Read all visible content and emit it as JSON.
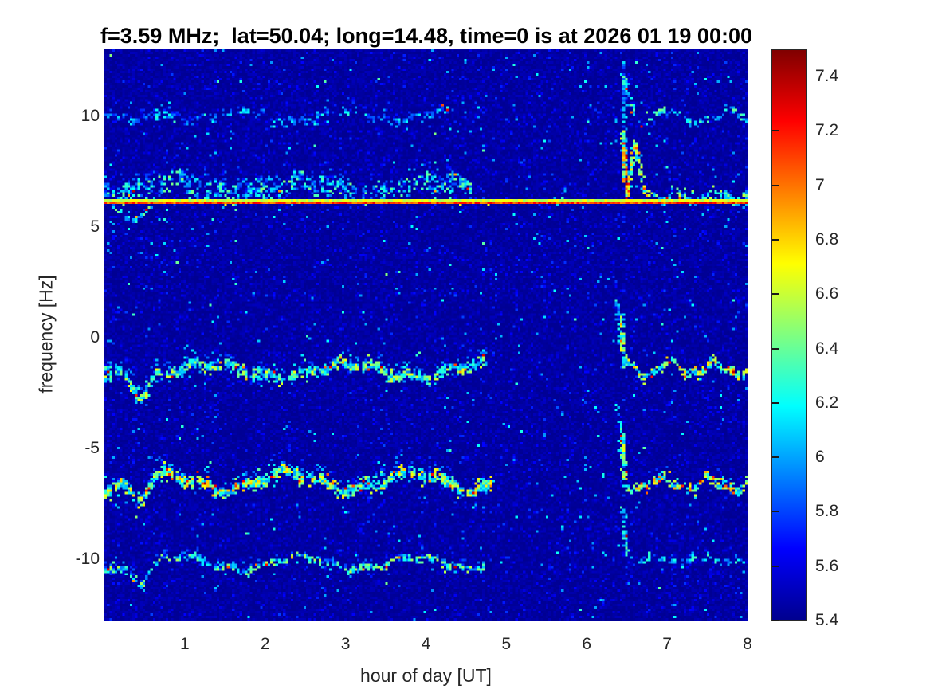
{
  "chart_data": {
    "type": "heatmap",
    "subtype": "doppler-spectrogram",
    "title": "f=3.59 MHz;  lat=50.04; long=14.48, time=0 is at 2026 01 19 00:00",
    "xlabel": "hour of day [UT]",
    "ylabel": "frequency [Hz]",
    "x_ticks": [
      1,
      2,
      3,
      4,
      5,
      6,
      7,
      8
    ],
    "x_tick_labels": [
      "1",
      "2",
      "3",
      "4",
      "5",
      "6",
      "7",
      "8"
    ],
    "y_ticks": [
      10,
      5,
      0,
      -5,
      -10
    ],
    "y_tick_labels": [
      "10",
      "5",
      "0",
      "-5",
      "-10"
    ],
    "xlim": [
      0,
      8
    ],
    "ylim": [
      -12.75,
      13.0
    ],
    "grid": false,
    "colormap": "jet",
    "caxis": [
      5.4,
      7.5
    ],
    "colorbar_ticks": [
      7.4,
      7.2,
      7.0,
      6.8,
      6.6,
      6.4,
      6.2,
      6.0,
      5.8,
      5.6,
      5.4
    ],
    "colorbar_tick_labels": [
      "7.4",
      "7.2",
      "7",
      "6.8",
      "6.6",
      "6.4",
      "6.2",
      "6",
      "5.8",
      "5.6",
      "5.4"
    ],
    "bins": {
      "time": 252,
      "freq": 240
    },
    "noise": {
      "base": 5.44,
      "jitter": 0.09,
      "speckle_prob": 0.1,
      "speckle_add": 0.3,
      "bright_speck_prob": 0.01,
      "bright_speck_lo": 5.95,
      "bright_speck_hi": 6.5
    },
    "carrier_lines": [
      {
        "name": "carrier-yellow-row",
        "hz": 6.2,
        "x0": 0,
        "x1": 8,
        "v": [
          6.5,
          6.75
        ]
      },
      {
        "name": "carrier-red-row",
        "hz": 6.08,
        "x0": 0,
        "x1": 8,
        "v": [
          6.9,
          7.3
        ]
      }
    ],
    "traces": [
      {
        "name": "echo-plus10-left",
        "hz": 10.05,
        "x0": 0.0,
        "x1": 4.35,
        "a1": 0.22,
        "wl1": 1.25,
        "p1": 0.2,
        "a2": 0.1,
        "wl2": 0.38,
        "p2": 0.0,
        "dip": [
          0.42,
          0.55,
          0.13
        ],
        "th": 0.1,
        "dens": 0.5,
        "v": [
          5.75,
          6.3
        ],
        "hot": 0.004,
        "cloud": {
          "spread": 0.45,
          "dens": 0.07,
          "v": [
            5.7,
            6.0
          ]
        }
      },
      {
        "name": "echo-plus10-right",
        "hz": 10.0,
        "x0": 6.55,
        "x1": 8.0,
        "a1": 0.28,
        "wl1": 0.75,
        "p1": 0.1,
        "a2": 0.12,
        "wl2": 0.3,
        "p2": 0.2,
        "th": 0.1,
        "dens": 0.65,
        "v": [
          5.85,
          6.45
        ],
        "hot": 0.005
      },
      {
        "name": "diffuse-cloud-above-carrier",
        "hz": 6.8,
        "x0": 0.0,
        "x1": 4.55,
        "a1": 0.25,
        "wl1": 1.6,
        "p1": 0.5,
        "a2": 0.12,
        "wl2": 0.5,
        "p2": 0.3,
        "th": 0.4,
        "dens": 0.4,
        "v": [
          5.8,
          6.5
        ],
        "hot": 0.012,
        "cloud": {
          "spread": 0.75,
          "dens": 0.22,
          "v": [
            5.7,
            6.25
          ]
        }
      },
      {
        "name": "carrier-right-wavy",
        "hz": 6.42,
        "x0": 6.85,
        "x1": 8.0,
        "a1": 0.22,
        "wl1": 0.5,
        "p1": 0.0,
        "a2": 0.1,
        "wl2": 0.22,
        "p2": 0.0,
        "th": 0.12,
        "dens": 0.8,
        "v": [
          5.9,
          6.6
        ],
        "hot": 0.03
      },
      {
        "name": "echo-minus1.5",
        "hz": -1.45,
        "x0": 0.0,
        "x1": 4.75,
        "a1": 0.3,
        "wl1": 1.7,
        "p1": 0.9,
        "a2": 0.15,
        "wl2": 0.45,
        "p2": 0.1,
        "dip": [
          0.45,
          0.75,
          0.14
        ],
        "th": 0.16,
        "dens": 0.85,
        "v": [
          5.95,
          6.7
        ],
        "hot": 0.035,
        "cloud": {
          "spread": 0.55,
          "dens": 0.22,
          "v": [
            5.8,
            6.35
          ]
        }
      },
      {
        "name": "echo-minus1.5-right",
        "hz": -1.35,
        "x0": 6.45,
        "x1": 8.0,
        "a1": 0.28,
        "wl1": 0.55,
        "p1": 0.3,
        "a2": 0.12,
        "wl2": 0.25,
        "p2": 0.0,
        "th": 0.13,
        "dens": 0.85,
        "v": [
          6.0,
          6.9
        ],
        "hot": 0.09
      },
      {
        "name": "echo-minus6.5",
        "hz": -6.45,
        "x0": 0.0,
        "x1": 4.8,
        "a1": 0.38,
        "wl1": 1.55,
        "p1": 0.35,
        "a2": 0.16,
        "wl2": 0.5,
        "p2": 0.6,
        "dip": [
          0.45,
          0.85,
          0.14
        ],
        "th": 0.18,
        "dens": 0.9,
        "v": [
          6.0,
          6.85
        ],
        "hot": 0.07,
        "cloud": {
          "spread": 0.6,
          "dens": 0.25,
          "v": [
            5.8,
            6.4
          ]
        }
      },
      {
        "name": "echo-minus6.5-right",
        "hz": -6.55,
        "x0": 6.45,
        "x1": 8.0,
        "a1": 0.25,
        "wl1": 0.6,
        "p1": 0.8,
        "a2": 0.12,
        "wl2": 0.27,
        "p2": 0.4,
        "th": 0.14,
        "dens": 0.85,
        "v": [
          6.0,
          6.95
        ],
        "hot": 0.12
      },
      {
        "name": "echo-minus10",
        "hz": -10.1,
        "x0": 0.0,
        "x1": 4.7,
        "a1": 0.28,
        "wl1": 1.45,
        "p1": 0.6,
        "a2": 0.1,
        "wl2": 0.42,
        "p2": 0.2,
        "dip": [
          0.45,
          0.8,
          0.13
        ],
        "th": 0.1,
        "dens": 0.8,
        "v": [
          5.9,
          6.6
        ],
        "hot": 0.025,
        "cloud": {
          "spread": 0.4,
          "dens": 0.12,
          "v": [
            5.75,
            6.2
          ]
        }
      },
      {
        "name": "echo-minus10-right",
        "hz": -9.95,
        "x0": 6.5,
        "x1": 8.0,
        "a1": 0.18,
        "wl1": 0.6,
        "p1": 0.1,
        "a2": 0.08,
        "wl2": 0.25,
        "p2": 0.0,
        "th": 0.1,
        "dens": 0.55,
        "v": [
          5.8,
          6.35
        ],
        "hot": 0.01
      }
    ],
    "features": [
      {
        "name": "sunrise-streak-top",
        "pts": [
          [
            6.44,
            12.7
          ],
          [
            6.47,
            7.3
          ]
        ],
        "dens": 0.3,
        "v": [
          5.75,
          6.2
        ],
        "hot": 0.01
      },
      {
        "name": "carrier-spike-up",
        "pts": [
          [
            6.43,
            9.3
          ],
          [
            6.49,
            6.4
          ]
        ],
        "dens": 0.85,
        "v": [
          6.0,
          7.0
        ],
        "hot": 0.15
      },
      {
        "name": "carrier-spike-chevron",
        "pts": [
          [
            6.49,
            6.4
          ],
          [
            6.58,
            8.9
          ],
          [
            6.7,
            6.7
          ],
          [
            6.85,
            6.45
          ]
        ],
        "dens": 0.7,
        "v": [
          5.95,
          6.8
        ],
        "hot": 0.08
      },
      {
        "name": "descend-minus1.5-a",
        "pts": [
          [
            6.36,
            1.9
          ],
          [
            6.41,
            -0.6
          ]
        ],
        "dens": 0.35,
        "v": [
          5.8,
          6.3
        ],
        "hot": 0.02
      },
      {
        "name": "descend-minus1.5-b",
        "pts": [
          [
            6.41,
            1.2
          ],
          [
            6.46,
            -1.35
          ]
        ],
        "dens": 0.7,
        "v": [
          5.95,
          6.7
        ],
        "hot": 0.1
      },
      {
        "name": "descend-minus6.5-a",
        "pts": [
          [
            6.37,
            -3.0
          ],
          [
            6.42,
            -5.3
          ]
        ],
        "dens": 0.35,
        "v": [
          5.8,
          6.3
        ],
        "hot": 0.02
      },
      {
        "name": "descend-minus6.5-b",
        "pts": [
          [
            6.42,
            -4.2
          ],
          [
            6.46,
            -6.4
          ]
        ],
        "dens": 0.7,
        "v": [
          5.95,
          6.7
        ],
        "hot": 0.1
      },
      {
        "name": "descend-minus10",
        "pts": [
          [
            6.43,
            -7.5
          ],
          [
            6.49,
            -9.8
          ]
        ],
        "dens": 0.45,
        "v": [
          5.85,
          6.4
        ],
        "hot": 0.02
      },
      {
        "name": "descend-plus10-right",
        "pts": [
          [
            6.45,
            11.9
          ],
          [
            6.57,
            10.2
          ]
        ],
        "dens": 0.5,
        "v": [
          5.85,
          6.4
        ],
        "hot": 0.02
      },
      {
        "name": "hook-below-carrier-start",
        "pts": [
          [
            0.08,
            6.0
          ],
          [
            0.3,
            5.35
          ],
          [
            0.45,
            5.5
          ],
          [
            0.55,
            6.0
          ]
        ],
        "dens": 0.6,
        "v": [
          5.85,
          6.5
        ],
        "hot": 0.01
      }
    ]
  },
  "colors": {
    "background": "#ffffff",
    "deep_blue_floor": "#00008F",
    "text": "#262626",
    "title": "#000000"
  }
}
